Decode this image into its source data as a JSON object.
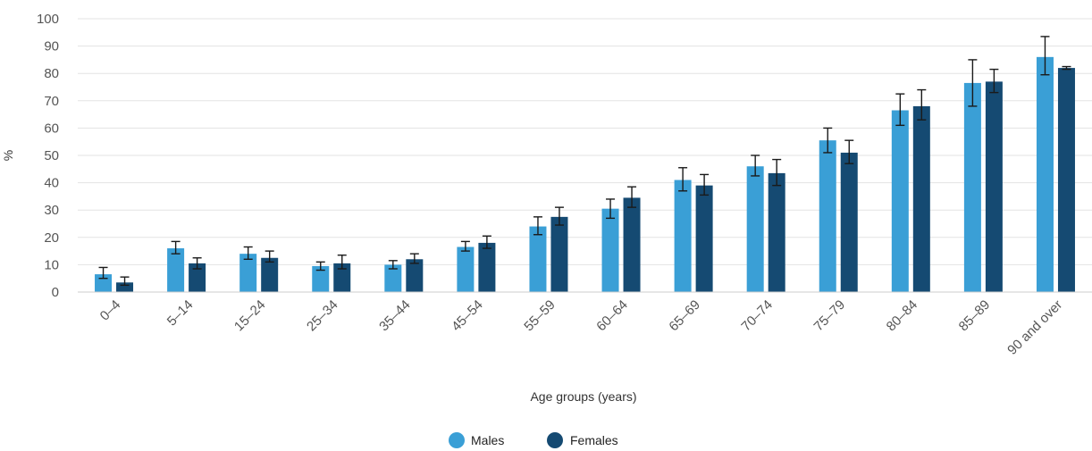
{
  "chart_data": {
    "type": "bar",
    "title": "",
    "xlabel": "Age groups (years)",
    "ylabel": "%",
    "ylim": [
      0,
      100
    ],
    "yticks": [
      0,
      10,
      20,
      30,
      40,
      50,
      60,
      70,
      80,
      90,
      100
    ],
    "grid": true,
    "legend_position": "bottom",
    "error_bars": true,
    "categories": [
      "0–4",
      "5–14",
      "15–24",
      "25–34",
      "35–44",
      "45–54",
      "55–59",
      "60–64",
      "65–69",
      "70–74",
      "75–79",
      "80–84",
      "85–89",
      "90 and over"
    ],
    "series": [
      {
        "name": "Males",
        "color": "#3a9fd6",
        "values": [
          6.5,
          16,
          14,
          9.5,
          10,
          16.5,
          24,
          30.5,
          41,
          46,
          55.5,
          66.5,
          76.5,
          86
        ],
        "error_low": [
          5,
          14,
          12,
          8,
          8.5,
          15,
          21,
          27,
          37,
          42.5,
          51,
          61,
          68,
          79.5
        ],
        "error_high": [
          9,
          18.5,
          16.5,
          11,
          11.5,
          18.5,
          27.5,
          34,
          45.5,
          50,
          60,
          72.5,
          85,
          93.5
        ]
      },
      {
        "name": "Females",
        "color": "#154a72",
        "values": [
          3.5,
          10.5,
          12.5,
          10.5,
          12,
          18,
          27.5,
          34.5,
          39,
          43.5,
          51,
          68,
          77,
          82
        ],
        "error_low": [
          2.5,
          8.5,
          11,
          8.5,
          10.5,
          16,
          24.5,
          31,
          35.5,
          39,
          47,
          63,
          73,
          81.5
        ],
        "error_high": [
          5.5,
          12.5,
          15,
          13.5,
          14,
          20.5,
          31,
          38.5,
          43,
          48.5,
          55.5,
          74,
          81.5,
          82.5
        ]
      }
    ]
  }
}
